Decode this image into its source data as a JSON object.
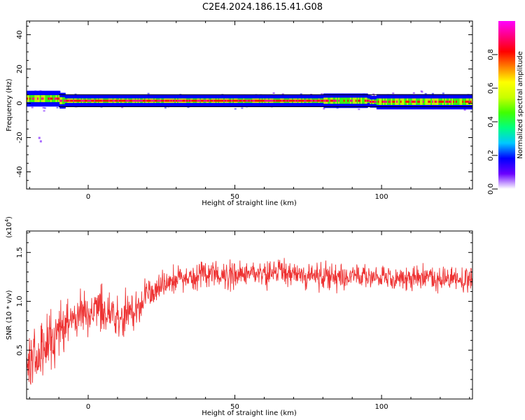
{
  "title": "C2E4.2024.186.15.41.G08",
  "chart_data": [
    {
      "type": "heatmap",
      "xlabel": "Height of straight line (km)",
      "ylabel": "Frequency (Hz)",
      "xlim": [
        -21,
        131
      ],
      "ylim": [
        -50,
        48
      ],
      "xticks": [
        0,
        50,
        100
      ],
      "yticks": [
        40,
        20,
        0,
        -20,
        -40
      ],
      "xtick_labels": [
        "0",
        "50",
        "100"
      ],
      "ytick_labels": [
        "40",
        "20",
        "0",
        "-20",
        "-40"
      ],
      "signal_frequency_hz": 1.5,
      "colorbar": {
        "label": "Normalized spectral amplitude",
        "range": [
          0,
          1
        ],
        "ticks": [
          0.0,
          0.2,
          0.4,
          0.6,
          0.8
        ],
        "tick_labels": [
          "0.0",
          "0.2",
          "0.4",
          "0.6",
          "0.8"
        ],
        "colormap": [
          "#ffffff",
          "#6a00ff",
          "#0000ff",
          "#00c8ff",
          "#00ff80",
          "#40ff00",
          "#c8ff00",
          "#ffff00",
          "#ff8000",
          "#ff0000",
          "#ff0080",
          "#ff00ff"
        ]
      }
    },
    {
      "type": "line",
      "xlabel": "Height of straight line (km)",
      "ylabel": "SNR (10 * v/v)",
      "ylabel_multiplier": "(x10^4)",
      "multiplier_base": "(x10",
      "multiplier_exp": "4",
      "multiplier_close": ")",
      "xlim": [
        -21,
        131
      ],
      "ylim": [
        0,
        17200
      ],
      "xticks": [
        0,
        50,
        100
      ],
      "yticks": [
        5000,
        10000,
        15000
      ],
      "xtick_labels": [
        "0",
        "50",
        "100"
      ],
      "ytick_labels": [
        "0.5",
        "1.0",
        "1.5"
      ],
      "color": "#ee3333",
      "series": [
        {
          "x": [
            -21,
            -15,
            -10,
            -5,
            0,
            5,
            10,
            15,
            20,
            25,
            30,
            40,
            50,
            60,
            70,
            80,
            90,
            100,
            110,
            120,
            131
          ],
          "y": [
            4000,
            5000,
            7000,
            8200,
            9000,
            9800,
            8500,
            8700,
            10500,
            11500,
            12200,
            12700,
            12800,
            12900,
            12900,
            12600,
            12500,
            12600,
            12300,
            12400,
            12200
          ]
        }
      ]
    }
  ]
}
